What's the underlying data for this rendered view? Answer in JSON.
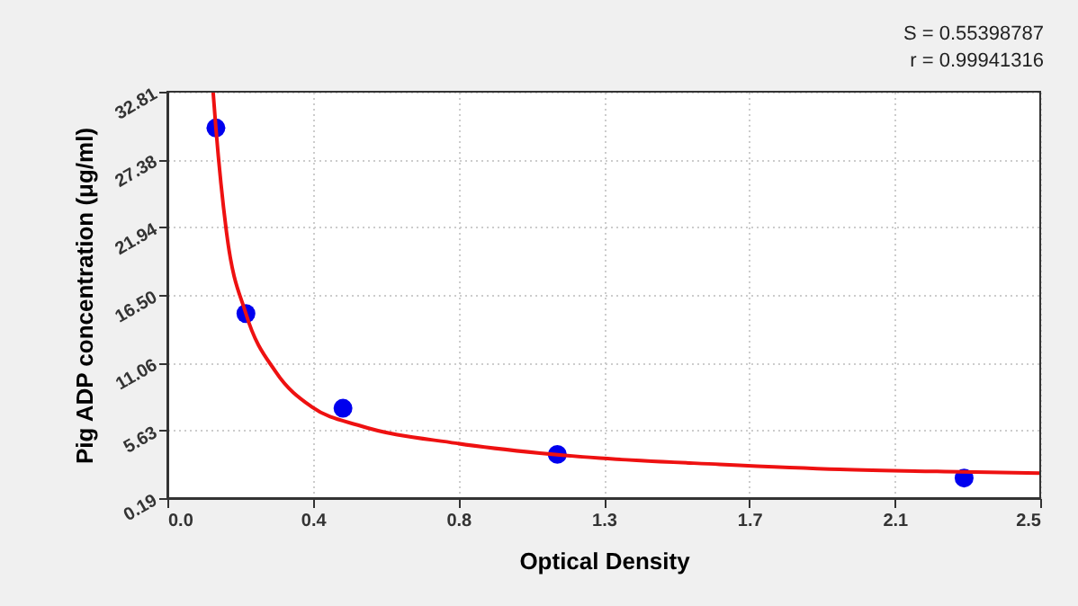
{
  "chart_data": {
    "type": "scatter",
    "xlabel": "Optical Density",
    "ylabel": "Pig ADP concentration (μg/ml)",
    "annotations": [
      "S = 0.55398787",
      "r = 0.99941316"
    ],
    "xlim": [
      0,
      2.5
    ],
    "ylim": [
      0.19,
      32.81
    ],
    "xticks": [
      {
        "value": 0,
        "label": "0.0"
      },
      {
        "value": 0.4167,
        "label": "0.4"
      },
      {
        "value": 0.8333,
        "label": "0.8"
      },
      {
        "value": 1.25,
        "label": "1.3"
      },
      {
        "value": 1.6667,
        "label": "1.7"
      },
      {
        "value": 2.0833,
        "label": "2.1"
      },
      {
        "value": 2.5,
        "label": "2.5"
      }
    ],
    "yticks": [
      0.19,
      5.63,
      11.06,
      {
        "value": 16.5,
        "label": "16.50"
      },
      21.94,
      27.38,
      32.81
    ],
    "grid": true,
    "marker": "circle",
    "series": [
      {
        "color": "#0000ee",
        "x": [
          0.139,
          0.225,
          0.503,
          1.117,
          2.282
        ],
        "values": [
          29.9,
          15.0,
          7.4,
          3.7,
          1.8
        ]
      },
      {
        "type": "line",
        "color": "#ee1111",
        "line_style": "solid",
        "marker": "none",
        "x": [
          0.131,
          0.139,
          0.17,
          0.225,
          0.311,
          0.414,
          0.552,
          0.826,
          1.067,
          1.239,
          1.582,
          1.926,
          2.27,
          2.5
        ],
        "values": [
          32.8,
          29.9,
          21.4,
          15.0,
          10.3,
          7.5,
          6.0,
          4.6,
          3.8,
          3.4,
          2.9,
          2.5,
          2.3,
          2.2
        ]
      }
    ]
  }
}
